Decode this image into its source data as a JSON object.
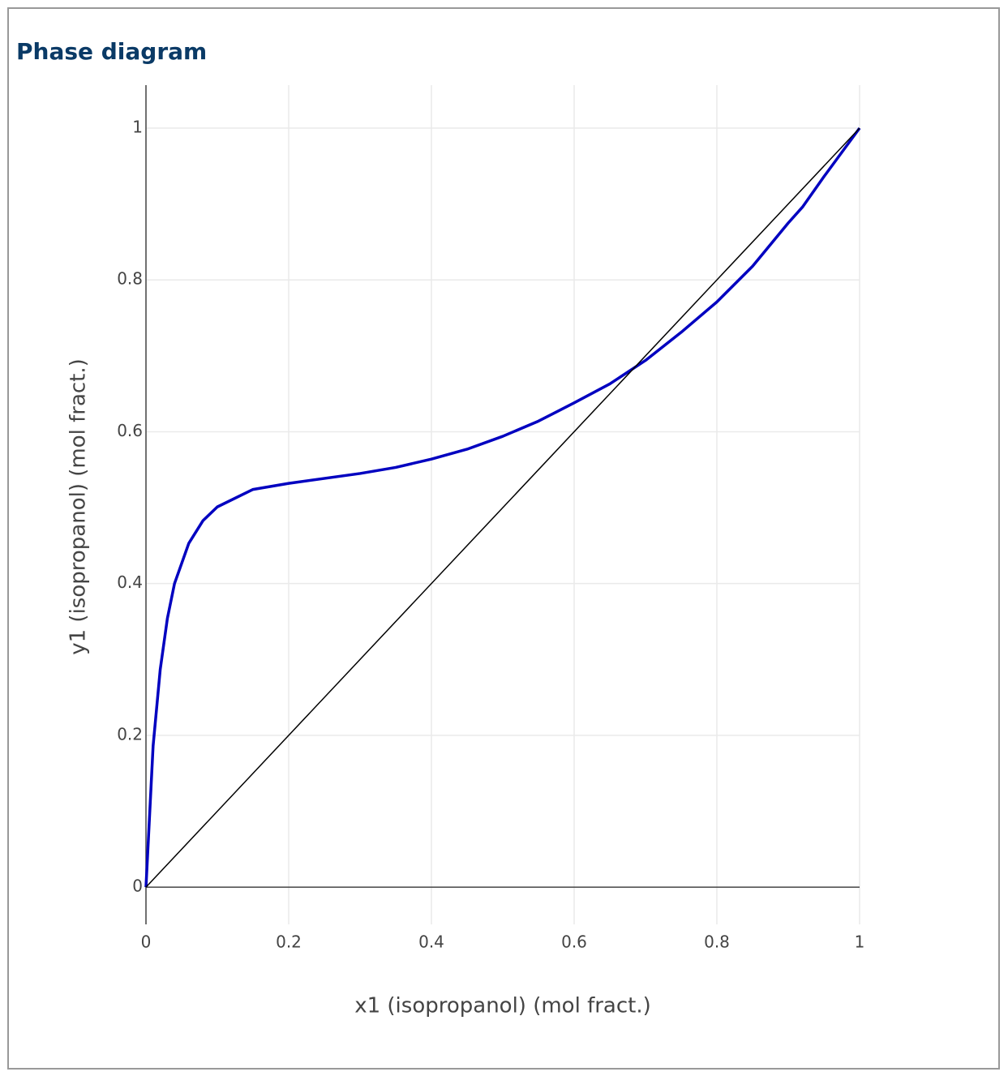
{
  "chart_data": {
    "type": "line",
    "title": "Phase diagram",
    "x_label": "x1 (isopropanol) (mol fract.)",
    "y_label": "y1 (isopropanol) (mol fract.)",
    "xlim": [
      0,
      1
    ],
    "ylim": [
      -0.049,
      1.0566
    ],
    "xticks": [
      0,
      0.2,
      0.4,
      0.6,
      0.8,
      1
    ],
    "yticks": [
      0,
      0.2,
      0.4,
      0.6,
      0.8,
      1
    ],
    "grid": true,
    "series": [
      {
        "color": "#0000c0",
        "x": [
          0,
          0.01,
          0.02,
          0.03,
          0.04,
          0.06,
          0.08,
          0.1,
          0.15,
          0.2,
          0.3,
          0.35,
          0.4,
          0.45,
          0.5,
          0.55,
          0.6,
          0.65,
          0.7,
          0.75,
          0.8,
          0.85,
          0.9,
          0.92,
          0.95,
          1
        ],
        "values": [
          0,
          0.186,
          0.287,
          0.354,
          0.4,
          0.453,
          0.483,
          0.501,
          0.524,
          0.532,
          0.545,
          0.553,
          0.564,
          0.577,
          0.594,
          0.614,
          0.638,
          0.663,
          0.694,
          0.731,
          0.771,
          0.818,
          0.875,
          0.896,
          0.936,
          1
        ]
      },
      {
        "color": "#000000",
        "x": [
          0,
          1
        ],
        "values": [
          0,
          1
        ]
      }
    ]
  }
}
